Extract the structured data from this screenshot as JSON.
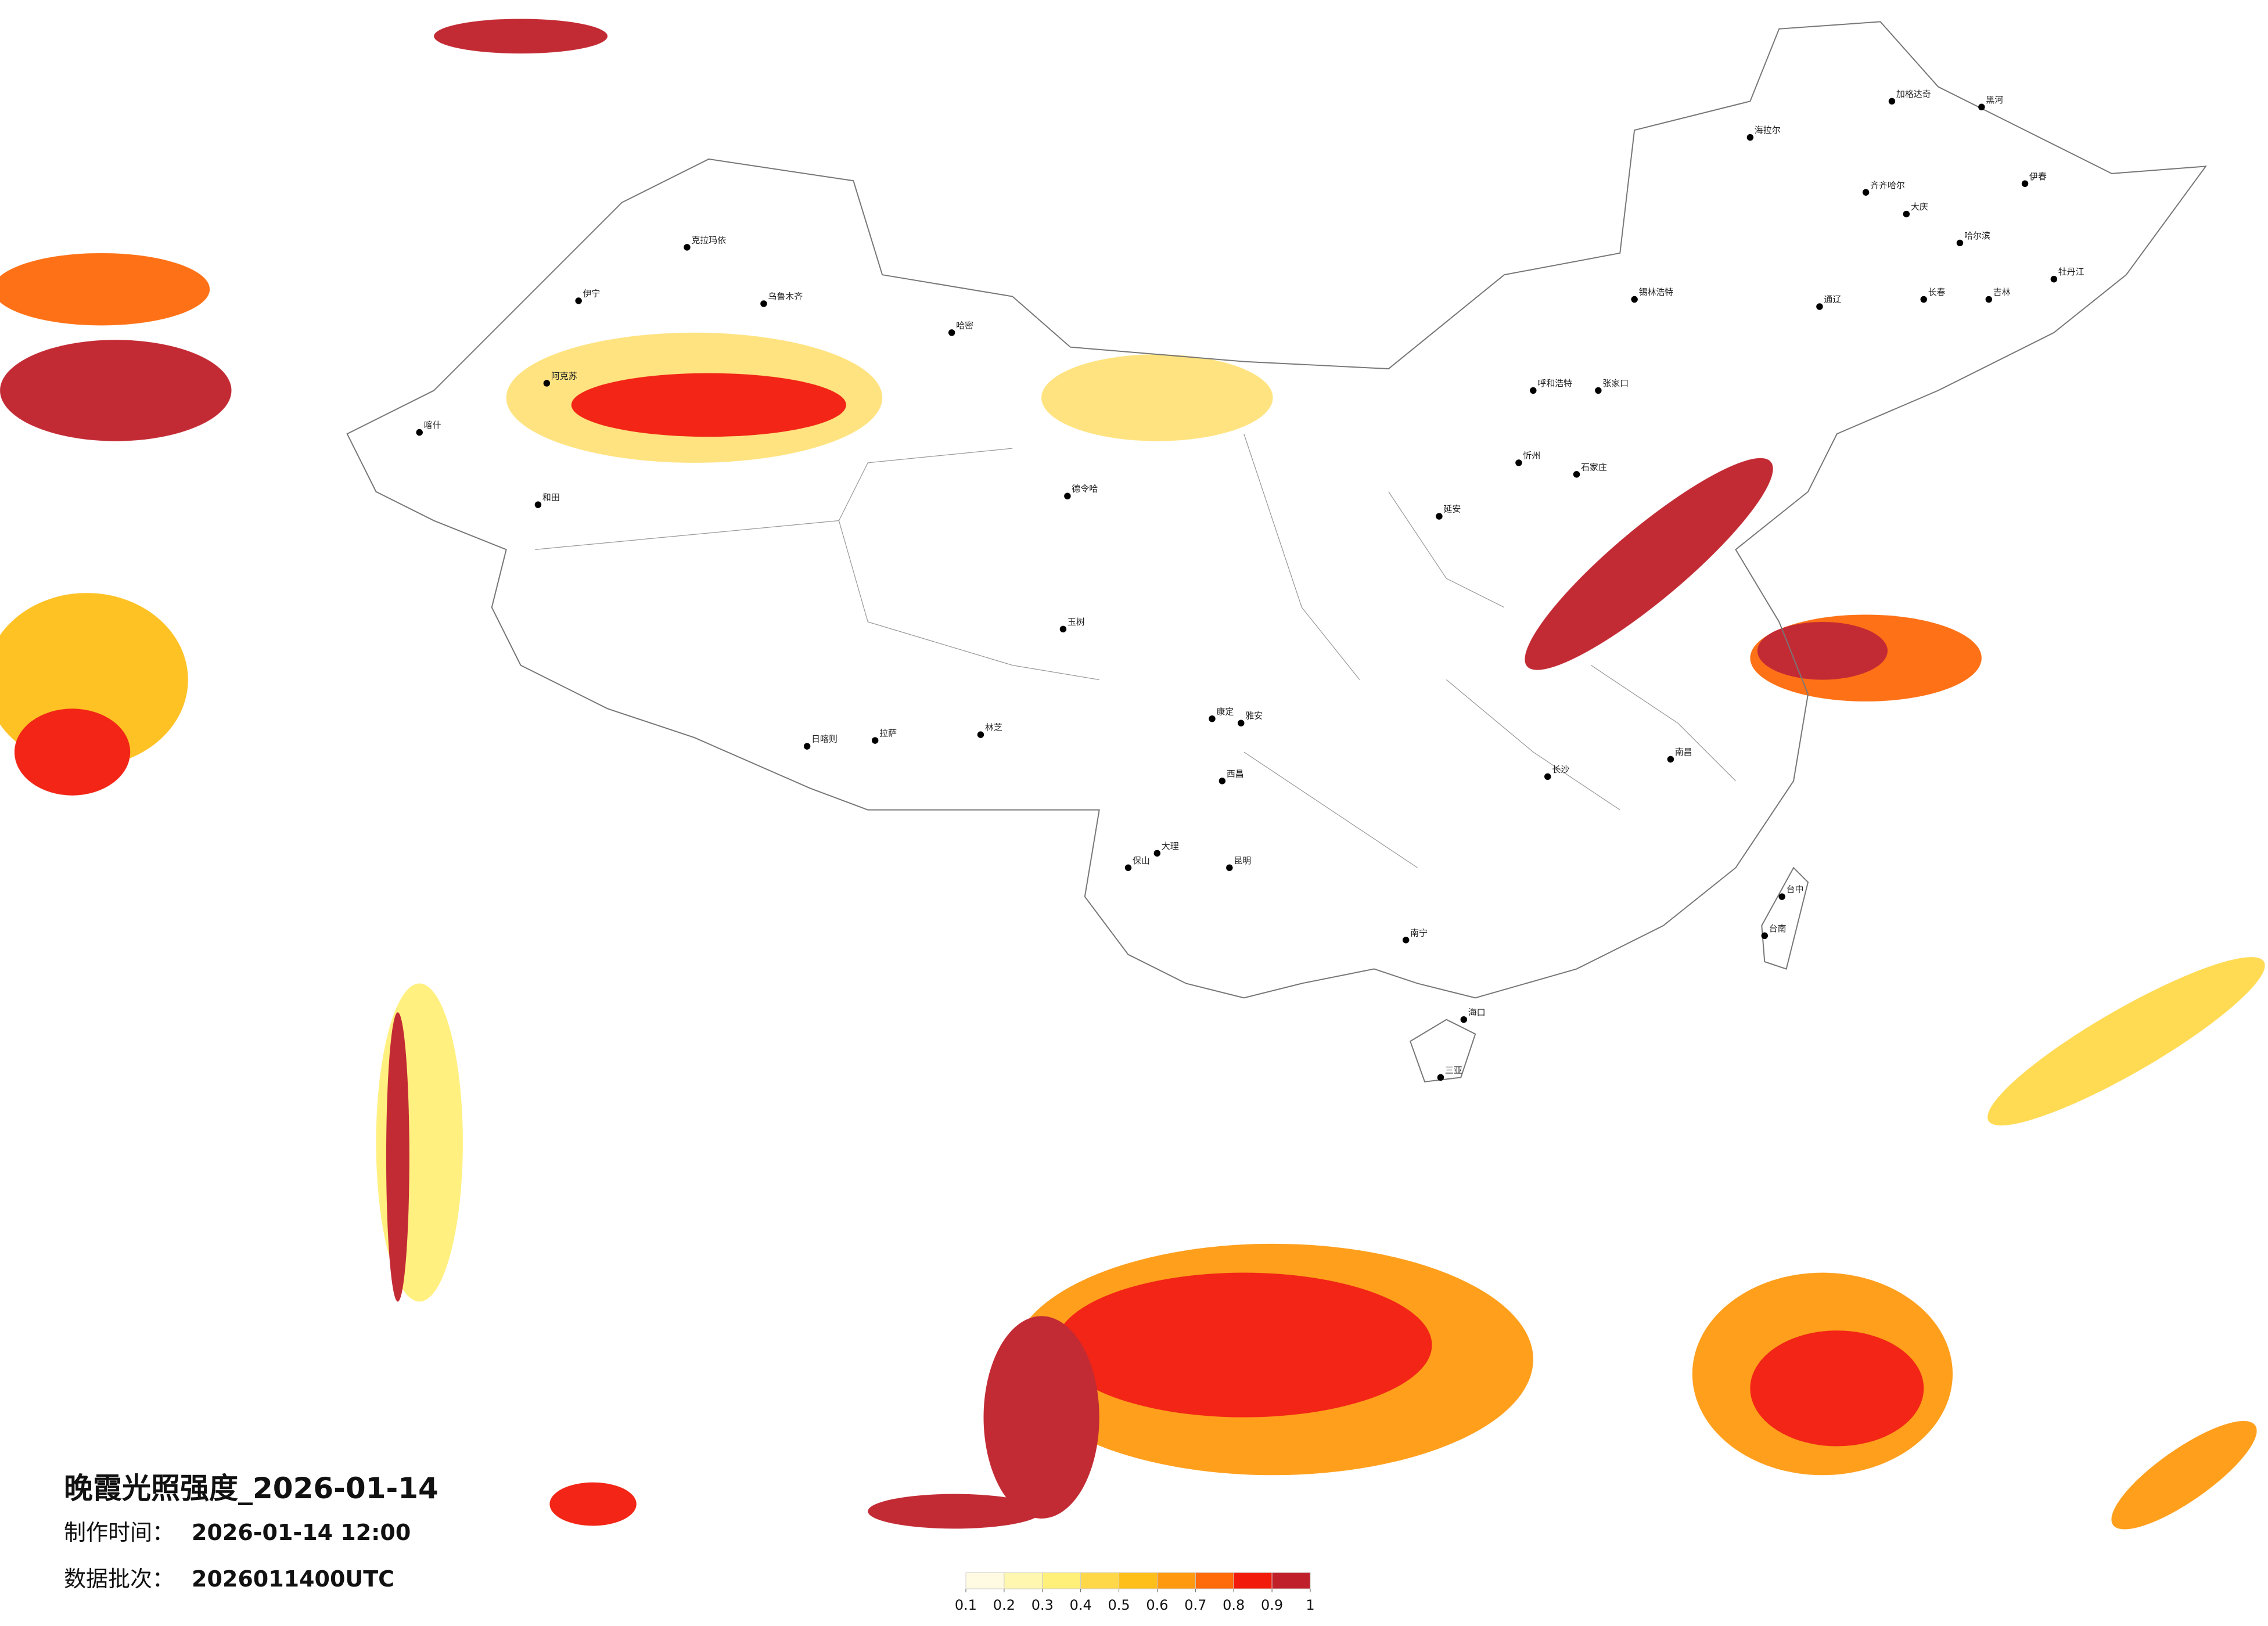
{
  "map": {
    "title": "晚霞光照强度_2026-01-14",
    "production_label": "制作时间：",
    "production_time": "2026-01-14 12:00",
    "batch_label": "数据批次：",
    "batch": "2026011400UTC",
    "colorbar": {
      "colors": [
        "#fffbe3",
        "#fff6b0",
        "#fff07a",
        "#ffd84a",
        "#ffbf1a",
        "#ff9a10",
        "#ff6a0a",
        "#f21a0a",
        "#c0202a"
      ],
      "ticks": [
        0.1,
        0.2,
        0.3,
        0.4,
        0.5,
        0.6,
        0.7,
        0.8,
        0.9,
        1
      ]
    },
    "cities": [
      "加格达奇",
      "黑河",
      "海拉尔",
      "伊春",
      "齐齐哈尔",
      "大庆",
      "哈尔滨",
      "牡丹江",
      "通辽",
      "长春",
      "吉林",
      "锡林浩特",
      "张家口",
      "呼和浩特",
      "石家庄",
      "忻州",
      "延安",
      "南昌",
      "长沙",
      "南宁",
      "海口",
      "三亚",
      "台中",
      "台南",
      "昆明",
      "大理",
      "保山",
      "西昌",
      "康定",
      "雅安",
      "拉萨",
      "日喀则",
      "林芝",
      "玉树",
      "德令哈",
      "和田",
      "喀什",
      "阿克苏",
      "伊宁",
      "克拉玛依",
      "乌鲁木齐",
      "哈密"
    ]
  }
}
